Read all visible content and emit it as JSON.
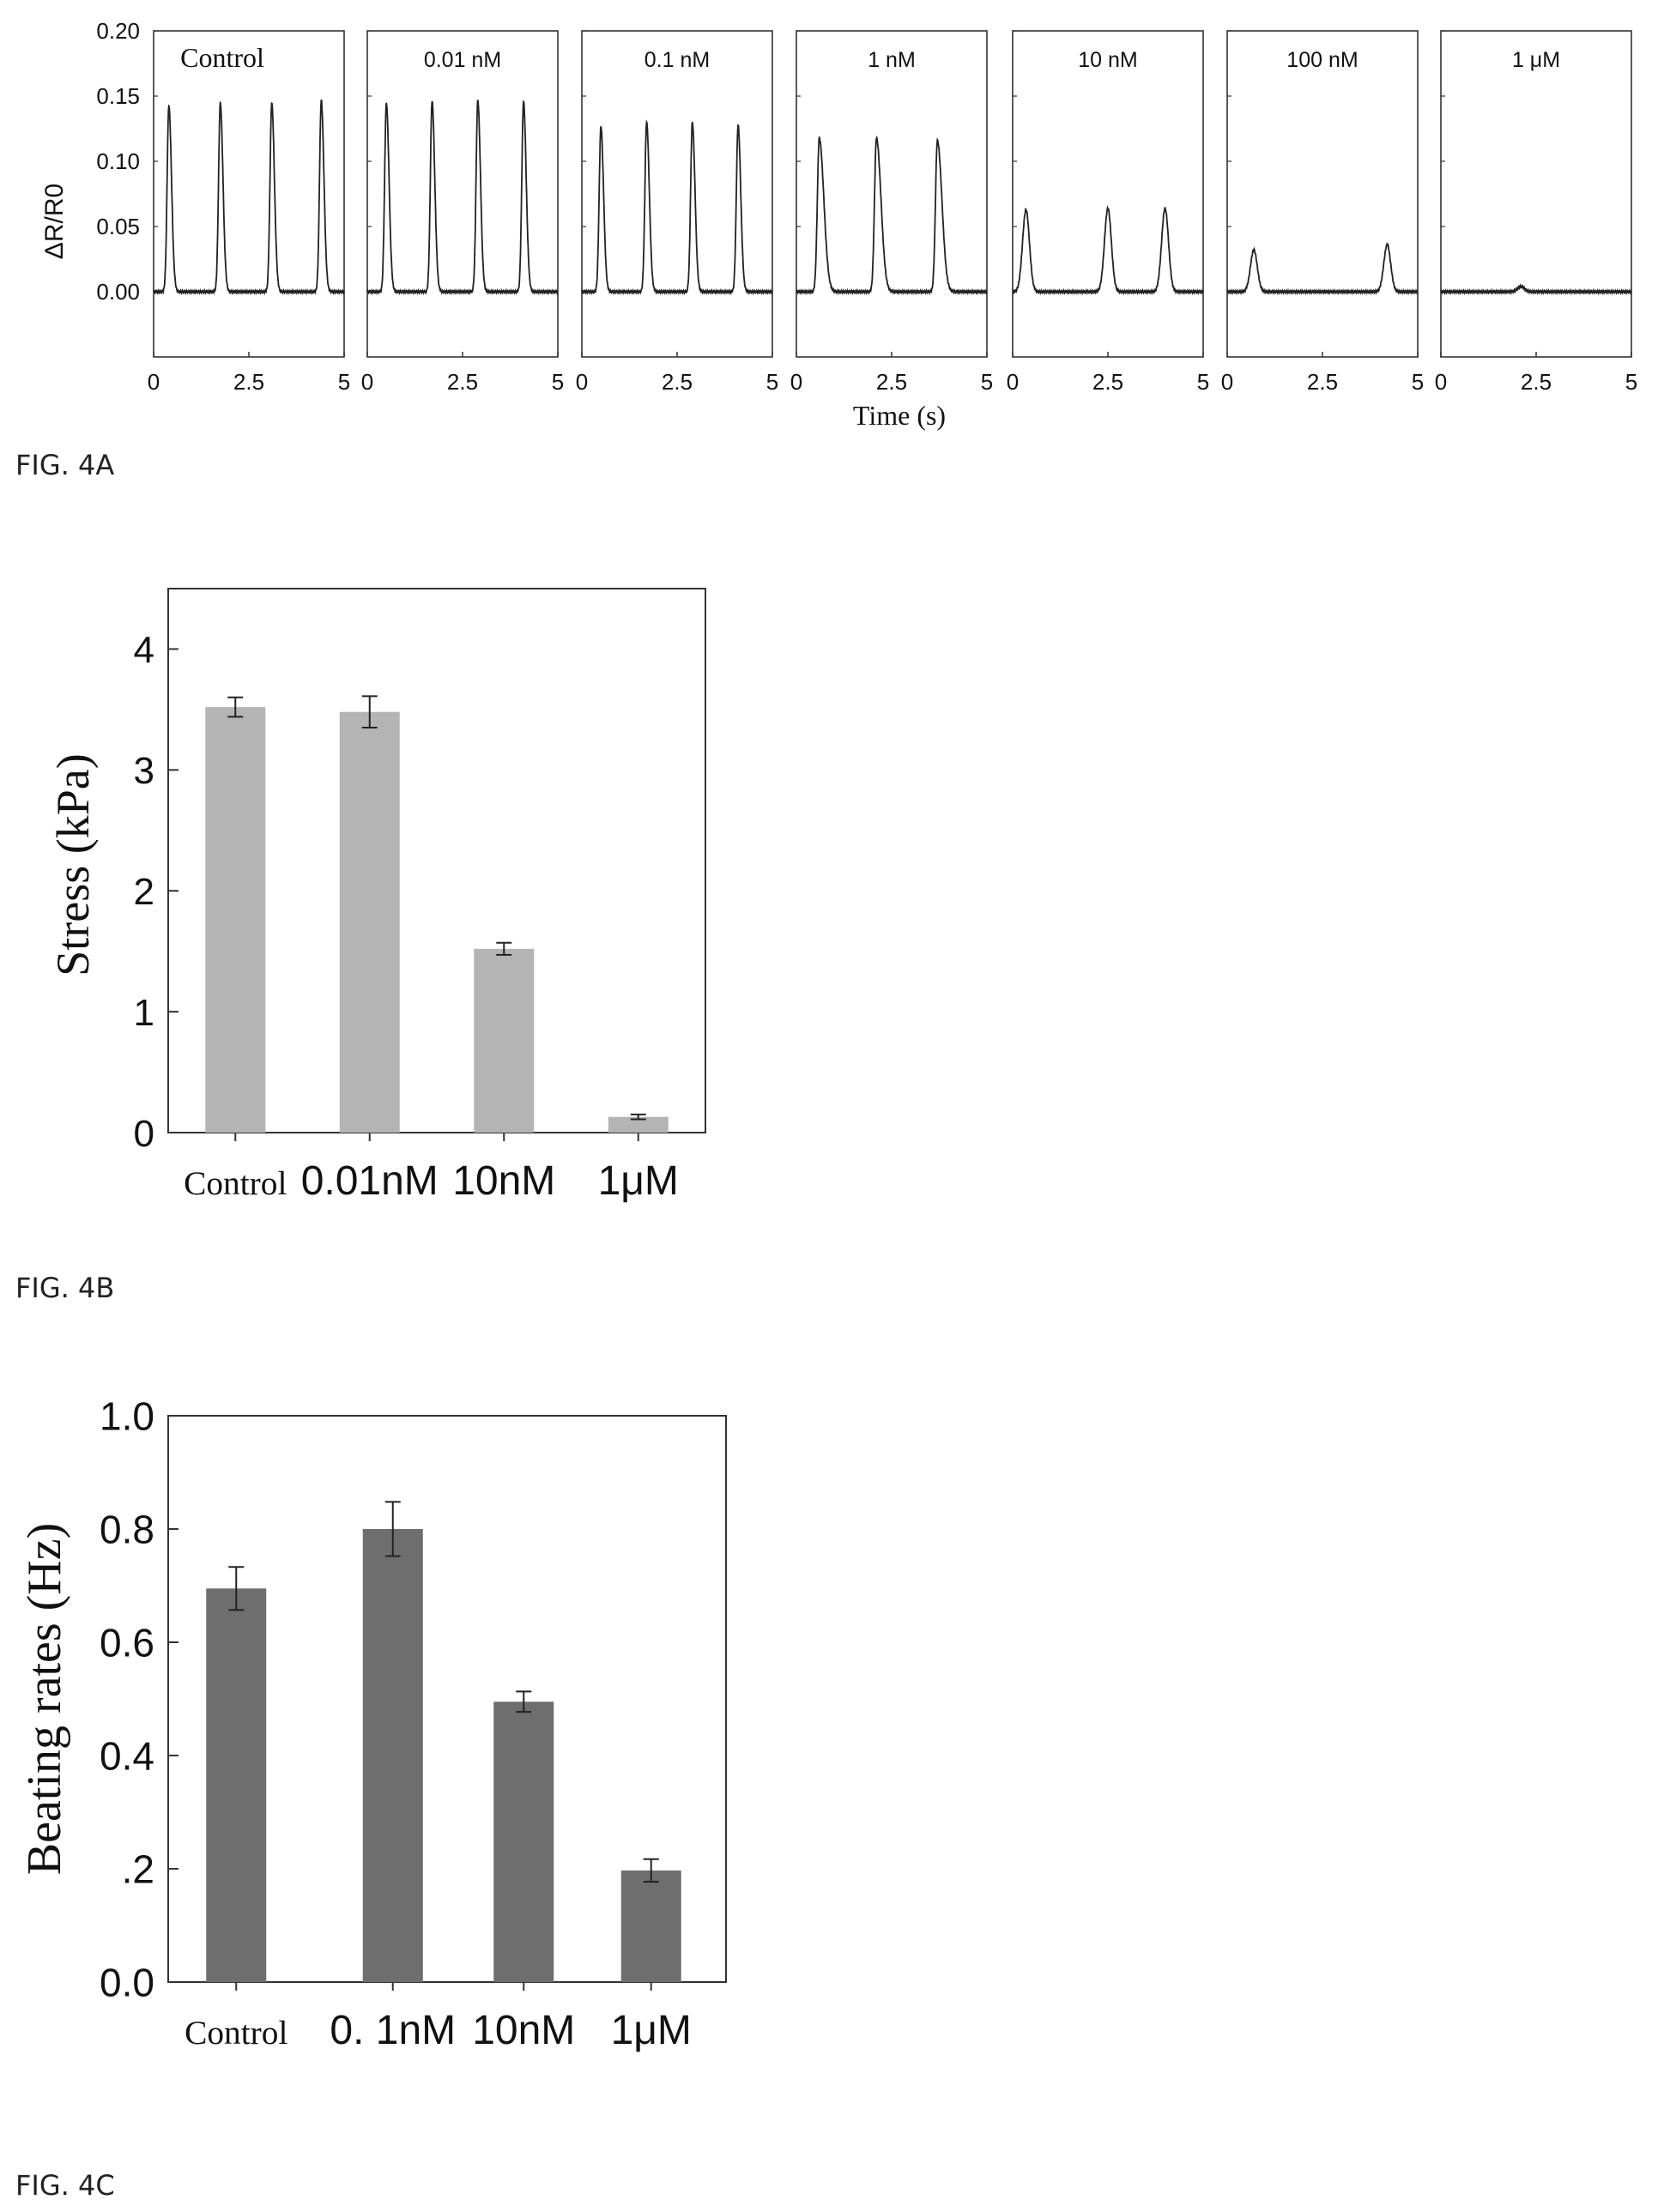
{
  "figure_labels": {
    "a": "FIG. 4A",
    "b": "FIG. 4B",
    "c": "FIG. 4C"
  },
  "chart_data": [
    {
      "type": "line",
      "ylabel": "ΔR/R0",
      "xlabel": "Time (s)",
      "ylim": [
        -0.05,
        0.2
      ],
      "yticks": [
        "0.00",
        "0.05",
        "0.10",
        "0.15",
        "0.20"
      ],
      "xlim": [
        0,
        5
      ],
      "xticks": [
        "0",
        "2.5",
        "5"
      ],
      "grid": false,
      "panels": [
        {
          "label": "Control",
          "peaks": [
            {
              "t": 0.4,
              "h": 0.143
            },
            {
              "t": 1.75,
              "h": 0.145
            },
            {
              "t": 3.1,
              "h": 0.145
            },
            {
              "t": 4.4,
              "h": 0.147
            }
          ]
        },
        {
          "label": "0.01 nM",
          "peaks": [
            {
              "t": 0.5,
              "h": 0.145
            },
            {
              "t": 1.7,
              "h": 0.146
            },
            {
              "t": 2.9,
              "h": 0.147
            },
            {
              "t": 4.1,
              "h": 0.146
            }
          ]
        },
        {
          "label": "0.1 nM",
          "peaks": [
            {
              "t": 0.5,
              "h": 0.127
            },
            {
              "t": 1.7,
              "h": 0.13
            },
            {
              "t": 2.9,
              "h": 0.13
            },
            {
              "t": 4.1,
              "h": 0.128
            }
          ]
        },
        {
          "label": "1 nM",
          "peaks": [
            {
              "t": 0.6,
              "h": 0.118
            },
            {
              "t": 2.1,
              "h": 0.118
            },
            {
              "t": 3.7,
              "h": 0.116
            }
          ]
        },
        {
          "label": "10 nM",
          "peaks": [
            {
              "t": 0.35,
              "h": 0.063
            },
            {
              "t": 2.5,
              "h": 0.064
            },
            {
              "t": 4.0,
              "h": 0.064
            }
          ]
        },
        {
          "label": "100 nM",
          "peaks": [
            {
              "t": 0.7,
              "h": 0.032
            },
            {
              "t": 4.2,
              "h": 0.036
            }
          ]
        },
        {
          "label": "1 μM",
          "peaks": [
            {
              "t": 2.1,
              "h": 0.004
            }
          ]
        }
      ]
    },
    {
      "type": "bar",
      "categories": [
        "Control",
        "0.01nM",
        "10nM",
        "1μM"
      ],
      "values": [
        3.52,
        3.48,
        1.52,
        0.13
      ],
      "errors": [
        0.08,
        0.13,
        0.05,
        0.02
      ],
      "ylabel": "Stress (kPa)",
      "xlabel": "",
      "ylim": [
        0,
        4.5
      ],
      "yticks": [
        "0",
        "1",
        "2",
        "3",
        "4"
      ],
      "bar_color": "#b4b4b4",
      "grid": false
    },
    {
      "type": "bar",
      "categories": [
        "Control",
        "0.   1nM",
        "10nM",
        "1μM"
      ],
      "values": [
        0.695,
        0.8,
        0.495,
        0.197
      ],
      "errors": [
        0.038,
        0.048,
        0.018,
        0.02
      ],
      "ylabel": "Beating rates (Hz)",
      "xlabel": "",
      "ylim": [
        0,
        1.0
      ],
      "yticks": [
        "0.0",
        ".2",
        "0.4",
        "0.6",
        "0.8",
        "1.0"
      ],
      "bar_color": "#6e6e6e",
      "grid": false
    }
  ]
}
